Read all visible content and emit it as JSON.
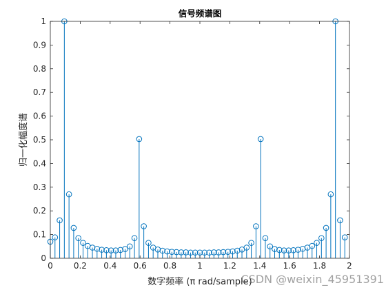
{
  "chart_data": {
    "type": "stem",
    "title": "信号频谱图",
    "xlabel": "数字频率 (π rad/sample)",
    "ylabel": "归一化幅度谱",
    "xlim": [
      0,
      2
    ],
    "ylim": [
      0,
      1
    ],
    "xticks": [
      "0",
      "0.2",
      "0.4",
      "0.6",
      "0.8",
      "1",
      "1.2",
      "1.4",
      "1.6",
      "1.8",
      "2"
    ],
    "yticks": [
      "0",
      "0.1",
      "0.2",
      "0.3",
      "0.4",
      "0.5",
      "0.6",
      "0.7",
      "0.8",
      "0.9",
      "1"
    ],
    "grid": false,
    "series_color": "#0072BD",
    "x": [
      0,
      0.03125,
      0.0625,
      0.09375,
      0.125,
      0.15625,
      0.1875,
      0.21875,
      0.25,
      0.28125,
      0.3125,
      0.34375,
      0.375,
      0.40625,
      0.4375,
      0.46875,
      0.5,
      0.53125,
      0.5625,
      0.59375,
      0.625,
      0.65625,
      0.6875,
      0.71875,
      0.75,
      0.78125,
      0.8125,
      0.84375,
      0.875,
      0.90625,
      0.9375,
      0.96875,
      1,
      1.03125,
      1.0625,
      1.09375,
      1.125,
      1.15625,
      1.1875,
      1.21875,
      1.25,
      1.28125,
      1.3125,
      1.34375,
      1.375,
      1.40625,
      1.4375,
      1.46875,
      1.5,
      1.53125,
      1.5625,
      1.59375,
      1.625,
      1.65625,
      1.6875,
      1.71875,
      1.75,
      1.78125,
      1.8125,
      1.84375,
      1.875,
      1.90625,
      1.9375,
      1.96875
    ],
    "y": [
      0.07,
      0.088,
      0.16,
      1.0,
      0.27,
      0.128,
      0.085,
      0.065,
      0.052,
      0.045,
      0.04,
      0.036,
      0.034,
      0.033,
      0.033,
      0.035,
      0.039,
      0.05,
      0.085,
      0.503,
      0.135,
      0.065,
      0.045,
      0.037,
      0.032,
      0.029,
      0.027,
      0.026,
      0.025,
      0.025,
      0.024,
      0.024,
      0.024,
      0.024,
      0.024,
      0.025,
      0.025,
      0.026,
      0.027,
      0.029,
      0.032,
      0.037,
      0.045,
      0.065,
      0.135,
      0.503,
      0.085,
      0.05,
      0.039,
      0.035,
      0.033,
      0.033,
      0.034,
      0.036,
      0.04,
      0.045,
      0.052,
      0.065,
      0.085,
      0.128,
      0.27,
      1.0,
      0.16,
      0.088
    ]
  },
  "watermark": "CSDN @weixin_45951391"
}
